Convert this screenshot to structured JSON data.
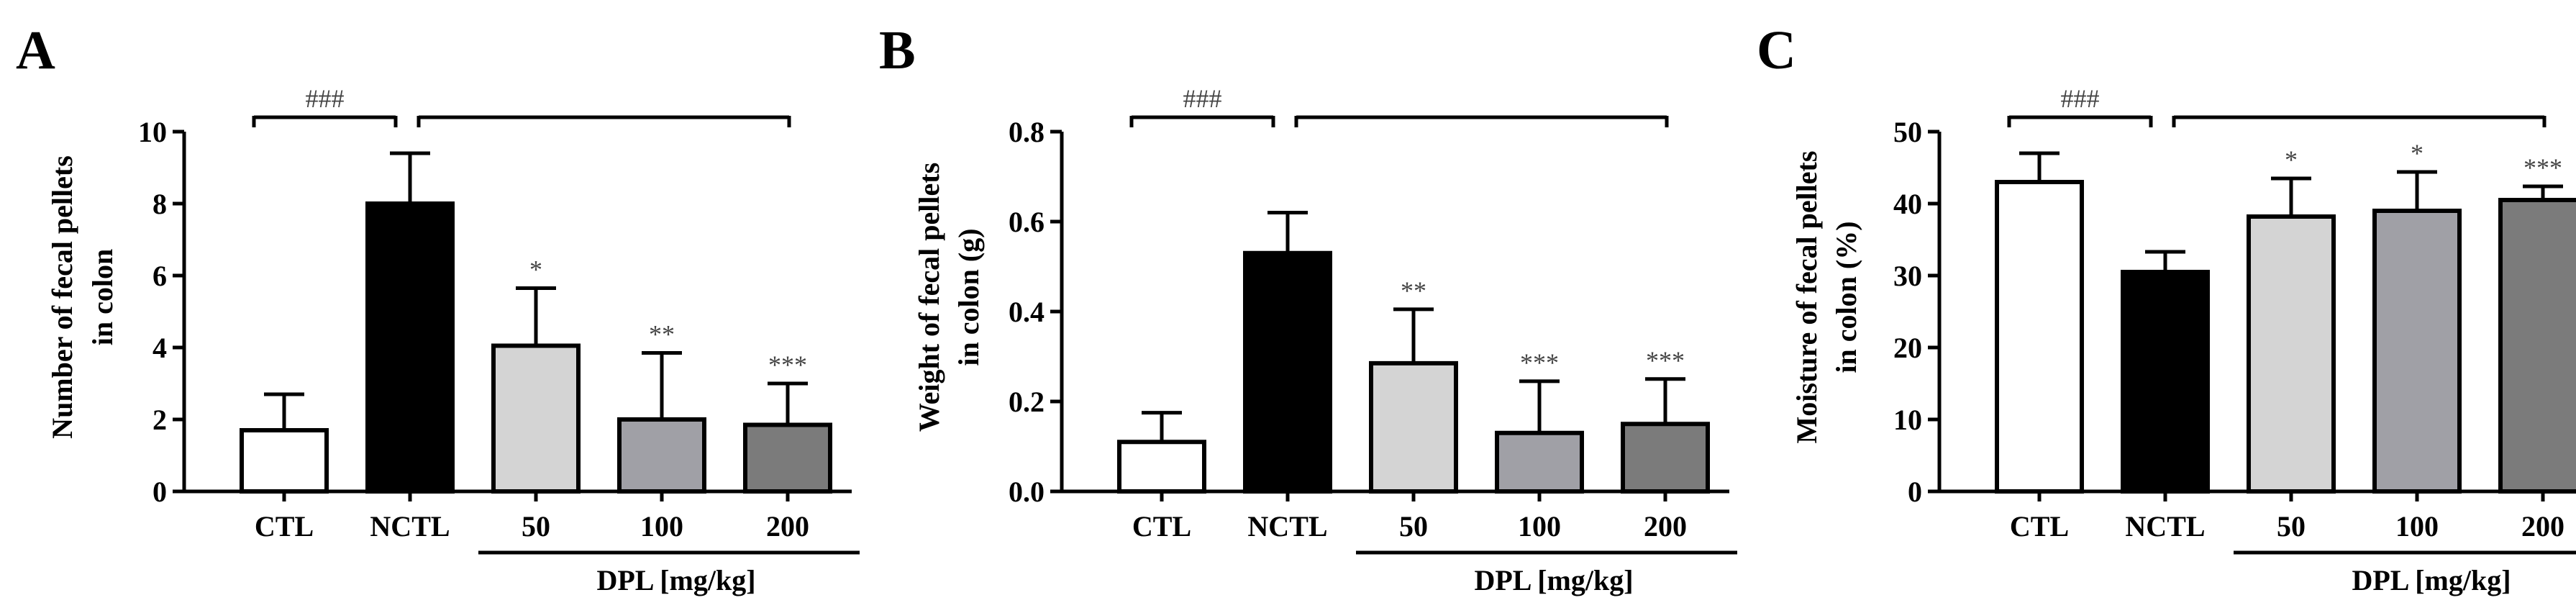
{
  "chart_data": [
    {
      "type": "bar",
      "panel": "A",
      "categories": [
        "CTL",
        "NCTL",
        "50",
        "100",
        "200"
      ],
      "values": [
        1.7,
        8.0,
        4.05,
        2.0,
        1.85
      ],
      "errors": [
        1.0,
        1.4,
        1.6,
        1.85,
        1.15
      ],
      "significance": [
        "",
        "",
        "*",
        "**",
        "***"
      ],
      "ylabel_lines": [
        "Number of fecal pellets",
        "in colon"
      ],
      "ylim": [
        0,
        10
      ],
      "yticks": [
        "0",
        "2",
        "4",
        "6",
        "8",
        "10"
      ],
      "ytick_values": [
        0,
        2,
        4,
        6,
        8,
        10
      ],
      "comparison_label": "###",
      "group_label": "DPL [mg/kg]"
    },
    {
      "type": "bar",
      "panel": "B",
      "categories": [
        "CTL",
        "NCTL",
        "50",
        "100",
        "200"
      ],
      "values": [
        0.11,
        0.53,
        0.285,
        0.13,
        0.15
      ],
      "errors": [
        0.065,
        0.09,
        0.12,
        0.115,
        0.1
      ],
      "significance": [
        "",
        "",
        "**",
        "***",
        "***"
      ],
      "ylabel_lines": [
        "Weight of fecal pellets",
        "in colon (g)"
      ],
      "ylim": [
        0,
        0.8
      ],
      "yticks": [
        "0.0",
        "0.2",
        "0.4",
        "0.6",
        "0.8"
      ],
      "ytick_values": [
        0,
        0.2,
        0.4,
        0.6,
        0.8
      ],
      "comparison_label": "###",
      "group_label": "DPL [mg/kg]"
    },
    {
      "type": "bar",
      "panel": "C",
      "categories": [
        "CTL",
        "NCTL",
        "50",
        "100",
        "200"
      ],
      "values": [
        43,
        30.5,
        38.2,
        39,
        40.5
      ],
      "errors": [
        4.0,
        2.8,
        5.3,
        5.4,
        1.9
      ],
      "significance": [
        "",
        "",
        "*",
        "*",
        "***"
      ],
      "ylabel_lines": [
        "Moisture of fecal pellets",
        "in colon (%)"
      ],
      "ylim": [
        0,
        50
      ],
      "yticks": [
        "0",
        "10",
        "20",
        "30",
        "40",
        "50"
      ],
      "ytick_values": [
        0,
        10,
        20,
        30,
        40,
        50
      ],
      "comparison_label": "###",
      "group_label": "DPL [mg/kg]"
    }
  ],
  "colors": {
    "bars": [
      "#ffffff",
      "#000000",
      "#d4d4d4",
      "#a0a0a6",
      "#7b7b7b"
    ],
    "stroke": "#000000",
    "significance": "#444444"
  }
}
